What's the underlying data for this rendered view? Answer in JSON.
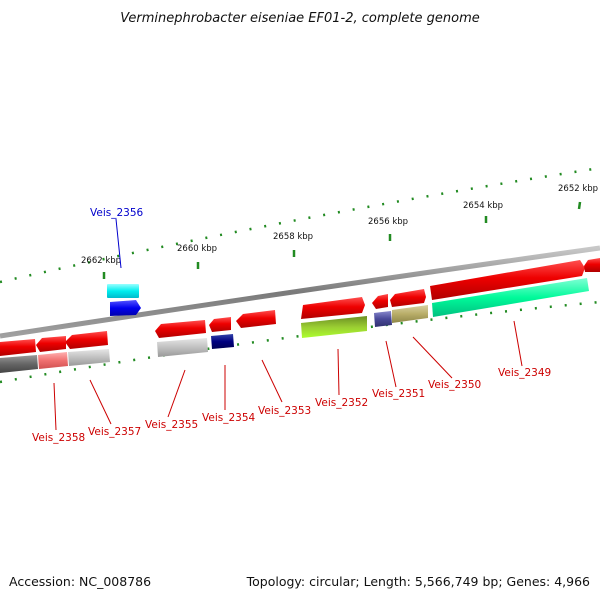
{
  "title": "Verminephrobacter eiseniae EF01-2, complete genome",
  "footer": {
    "accession": "Accession: NC_008786",
    "summary": "Topology: circular; Length: 5,566,749 bp; Genes: 4,966"
  },
  "scale_labels": [
    "2652 kbp",
    "2654 kbp",
    "2656 kbp",
    "2658 kbp",
    "2660 kbp",
    "2662 kbp"
  ],
  "genes": [
    {
      "label": "Veis_2349",
      "color": "#cc0000"
    },
    {
      "label": "Veis_2350",
      "color": "#cc0000"
    },
    {
      "label": "Veis_2351",
      "color": "#cc0000"
    },
    {
      "label": "Veis_2352",
      "color": "#cc0000"
    },
    {
      "label": "Veis_2353",
      "color": "#cc0000"
    },
    {
      "label": "Veis_2354",
      "color": "#cc0000"
    },
    {
      "label": "Veis_2355",
      "color": "#cc0000"
    },
    {
      "label": "Veis_2356",
      "color": "#0000cc"
    },
    {
      "label": "Veis_2357",
      "color": "#cc0000"
    },
    {
      "label": "Veis_2358",
      "color": "#cc0000"
    }
  ],
  "colors": {
    "forward": "#ee0000",
    "backbone": "#8a8a8a",
    "tick": "#228b22"
  }
}
